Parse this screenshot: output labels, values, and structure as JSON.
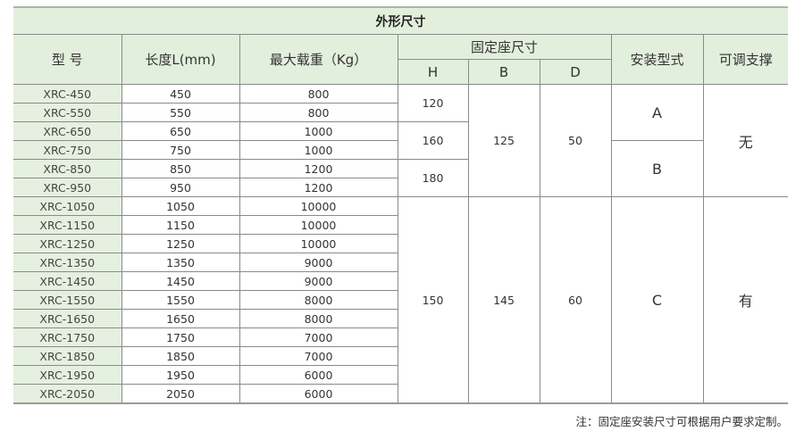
{
  "title": "外形尺寸",
  "headers": {
    "model": "型 号",
    "length": "长度L(mm)",
    "max_load": "最大载重（Kg）",
    "mount_size": "固定座尺寸",
    "h": "H",
    "b": "B",
    "d": "D",
    "mount_type": "安装型式",
    "adjustable": "可调支撑"
  },
  "rows": [
    {
      "model": "XRC-450",
      "length": "450",
      "load": "800"
    },
    {
      "model": "XRC-550",
      "length": "550",
      "load": "800"
    },
    {
      "model": "XRC-650",
      "length": "650",
      "load": "1000"
    },
    {
      "model": "XRC-750",
      "length": "750",
      "load": "1000"
    },
    {
      "model": "XRC-850",
      "length": "850",
      "load": "1200"
    },
    {
      "model": "XRC-950",
      "length": "950",
      "load": "1200"
    },
    {
      "model": "XRC-1050",
      "length": "1050",
      "load": "10000"
    },
    {
      "model": "XRC-1150",
      "length": "1150",
      "load": "10000"
    },
    {
      "model": "XRC-1250",
      "length": "1250",
      "load": "10000"
    },
    {
      "model": "XRC-1350",
      "length": "1350",
      "load": "9000"
    },
    {
      "model": "XRC-1450",
      "length": "1450",
      "load": "9000"
    },
    {
      "model": "XRC-1550",
      "length": "1550",
      "load": "8000"
    },
    {
      "model": "XRC-1650",
      "length": "1650",
      "load": "8000"
    },
    {
      "model": "XRC-1750",
      "length": "1750",
      "load": "7000"
    },
    {
      "model": "XRC-1850",
      "length": "1850",
      "load": "7000"
    },
    {
      "model": "XRC-1950",
      "length": "1950",
      "load": "6000"
    },
    {
      "model": "XRC-2050",
      "length": "2050",
      "load": "6000"
    }
  ],
  "merged": {
    "h": [
      {
        "value": "120",
        "rows": 2
      },
      {
        "value": "160",
        "rows": 2
      },
      {
        "value": "180",
        "rows": 2
      },
      {
        "value": "150",
        "rows": 11
      }
    ],
    "b": [
      {
        "value": "125",
        "rows": 6
      },
      {
        "value": "145",
        "rows": 11
      }
    ],
    "d": [
      {
        "value": "50",
        "rows": 6
      },
      {
        "value": "60",
        "rows": 11
      }
    ],
    "mount_type": [
      {
        "value": "A",
        "rows": 3
      },
      {
        "value": "B",
        "rows": 3
      },
      {
        "value": "C",
        "rows": 11
      }
    ],
    "adjustable": [
      {
        "value": "无",
        "rows": 6
      },
      {
        "value": "有",
        "rows": 11
      }
    ]
  },
  "note": "注：固定座安装尺寸可根据用户要求定制。"
}
